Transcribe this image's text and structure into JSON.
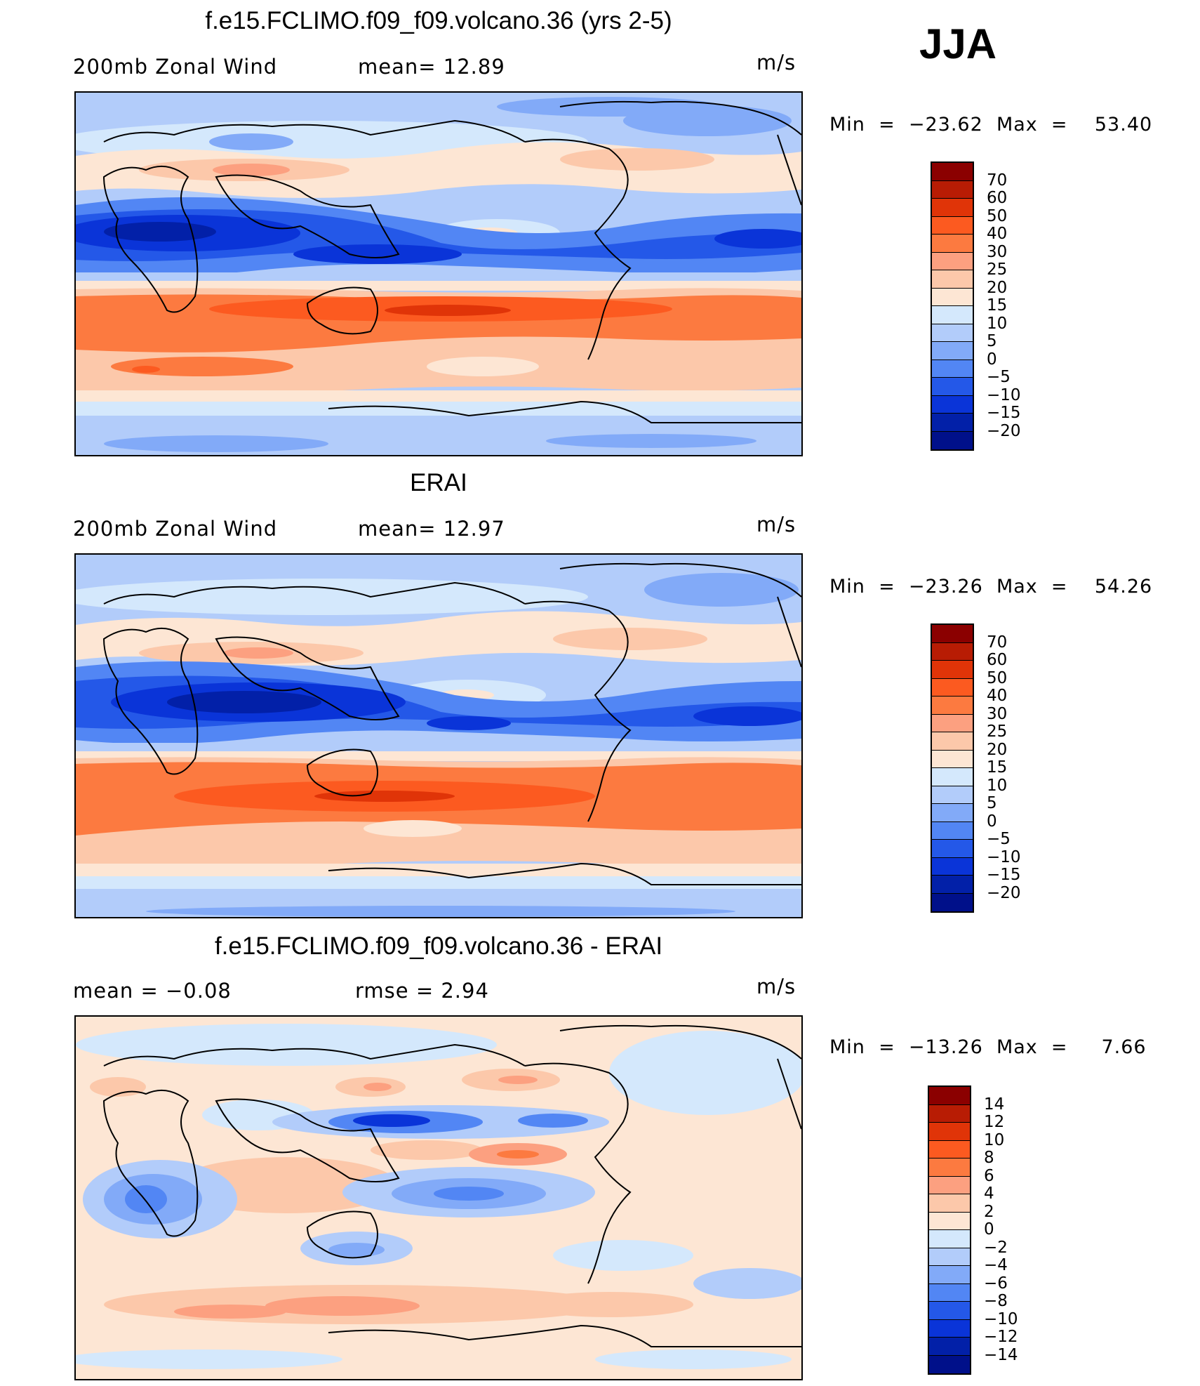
{
  "figure": {
    "season": "JJA",
    "units_label": "m/s"
  },
  "panels": [
    {
      "id": "model",
      "title": "f.e15.FCLIMO.f09_f09.volcano.36 (yrs 2-5)",
      "left_label": "200mb  Zonal  Wind",
      "stat_label": "mean=   12.89",
      "units": "m/s",
      "min_max": "Min  =  −23.62  Max  =    53.40",
      "field": "200mb zonal wind, model",
      "map_caption": "Model 200mb zonal wind map"
    },
    {
      "id": "obs",
      "title": "ERAI",
      "left_label": "200mb  Zonal  Wind",
      "stat_label": "mean=   12.97",
      "units": "m/s",
      "min_max": "Min  =  −23.26  Max  =    54.26",
      "field": "200mb zonal wind, ERA-Interim",
      "map_caption": "ERAI 200mb zonal wind map"
    },
    {
      "id": "diff",
      "title": "f.e15.FCLIMO.f09_f09.volcano.36 - ERAI",
      "left_label": "mean  =    −0.08",
      "stat_label": "rmse  =     2.94",
      "units": "m/s",
      "min_max": "Min  =  −13.26  Max  =     7.66",
      "field": "difference model minus ERAI",
      "map_caption": "Difference map"
    }
  ],
  "colorbars": {
    "wind": {
      "ticks": [
        "70",
        "60",
        "50",
        "40",
        "30",
        "25",
        "20",
        "15",
        "10",
        "5",
        "0",
        "−5",
        "−10",
        "−15",
        "−20"
      ],
      "colors": [
        "#8b0000",
        "#b81c04",
        "#e03408",
        "#fc5a20",
        "#fc7a40",
        "#fca080",
        "#fcc8aa",
        "#fde6d4",
        "#d4e8fc",
        "#b2ccfa",
        "#82aaf8",
        "#5286f4",
        "#2458e8",
        "#0a34d8",
        "#0220a8",
        "#00108a"
      ]
    },
    "diff": {
      "ticks": [
        "14",
        "12",
        "10",
        "8",
        "6",
        "4",
        "2",
        "0",
        "−2",
        "−4",
        "−6",
        "−8",
        "−10",
        "−12",
        "−14"
      ],
      "colors": [
        "#8b0000",
        "#b81c04",
        "#e03408",
        "#fc5a20",
        "#fc7a40",
        "#fca080",
        "#fcc8aa",
        "#fde6d4",
        "#d4e8fc",
        "#b2ccfa",
        "#82aaf8",
        "#5286f4",
        "#2458e8",
        "#0a34d8",
        "#0220a8",
        "#00108a"
      ]
    }
  }
}
